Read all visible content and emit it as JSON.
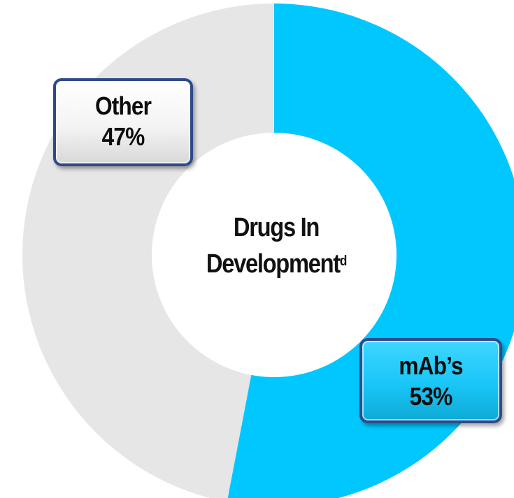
{
  "chart_data": {
    "type": "pie",
    "donut": true,
    "center_label": {
      "line1": "Drugs In",
      "line2": "Development",
      "superscript": "d"
    },
    "slices": [
      {
        "label": "mAb’s",
        "value": 53,
        "display": "53%",
        "color": "#00c8ff"
      },
      {
        "label": "Other",
        "value": 47,
        "display": "47%",
        "color": "#e6e6e6"
      }
    ],
    "start_angle_deg": 0,
    "direction": "clockwise",
    "legend": "none"
  }
}
